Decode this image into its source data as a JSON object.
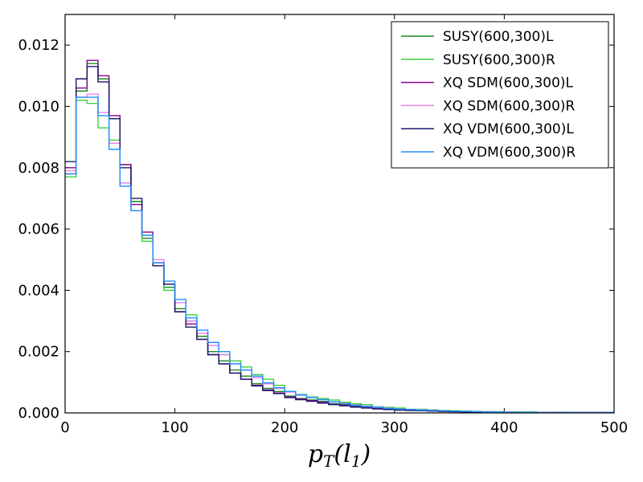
{
  "chart_data": {
    "type": "line",
    "title": "",
    "xlabel": "p_T(l_1)",
    "xlabel_parts": {
      "main": "p",
      "sub1": "T",
      "open": "(l",
      "sub2": "1",
      "close": ")"
    },
    "ylabel": "",
    "xlim": [
      0,
      500
    ],
    "ylim": [
      0,
      0.013
    ],
    "xticks": [
      0,
      100,
      200,
      300,
      400,
      500
    ],
    "yticks": [
      0.0,
      0.002,
      0.004,
      0.006,
      0.008,
      0.01,
      0.012
    ],
    "xtick_labels": [
      "0",
      "100",
      "200",
      "300",
      "400",
      "500"
    ],
    "ytick_labels": [
      "0.000",
      "0.002",
      "0.004",
      "0.006",
      "0.008",
      "0.010",
      "0.012"
    ],
    "legend_position": "top-right",
    "bin_edges": [
      0,
      10,
      20,
      30,
      40,
      50,
      60,
      70,
      80,
      90,
      100,
      110,
      120,
      130,
      140,
      150,
      160,
      170,
      180,
      190,
      200,
      210,
      220,
      230,
      240,
      250,
      260,
      270,
      280,
      290,
      300,
      310,
      320,
      330,
      340,
      350,
      360,
      370,
      380,
      390,
      400,
      410,
      420,
      430,
      440,
      450,
      460,
      470,
      480,
      490,
      500
    ],
    "series": [
      {
        "name": "SUSY(600,300)L",
        "color": "#1a8a1a",
        "values": [
          0.0078,
          0.0105,
          0.0114,
          0.0109,
          0.0096,
          0.0081,
          0.0069,
          0.0057,
          0.0048,
          0.0041,
          0.0034,
          0.003,
          0.0025,
          0.002,
          0.0017,
          0.0014,
          0.0012,
          0.00095,
          0.0008,
          0.0007,
          0.00055,
          0.00047,
          0.00042,
          0.00037,
          0.0003,
          0.00027,
          0.00022,
          0.00019,
          0.00016,
          0.00014,
          0.00012,
          0.0001,
          9e-05,
          8e-05,
          7e-05,
          6e-05,
          5e-05,
          4e-05,
          4e-05,
          3e-05,
          3e-05,
          2e-05,
          2e-05,
          2e-05,
          1e-05,
          1e-05,
          1e-05,
          1e-05,
          1e-05,
          1e-05
        ]
      },
      {
        "name": "SUSY(600,300)R",
        "color": "#3ccf3c",
        "values": [
          0.0077,
          0.0102,
          0.0101,
          0.0093,
          0.0089,
          0.0075,
          0.0066,
          0.0056,
          0.0048,
          0.004,
          0.0033,
          0.0032,
          0.0026,
          0.0023,
          0.0019,
          0.0017,
          0.0015,
          0.00125,
          0.0011,
          0.0009,
          0.0007,
          0.0006,
          0.00052,
          0.00047,
          0.00042,
          0.00035,
          0.0003,
          0.00027,
          0.0002,
          0.00018,
          0.00016,
          0.00012,
          0.00012,
          0.0001,
          8e-05,
          7e-05,
          6e-05,
          5e-05,
          4e-05,
          4e-05,
          3e-05,
          3e-05,
          3e-05,
          2e-05,
          2e-05,
          2e-05,
          1e-05,
          1e-05,
          1e-05,
          1e-05
        ]
      },
      {
        "name": "XQ SDM(600,300)L",
        "color": "#8b008b",
        "values": [
          0.008,
          0.0106,
          0.0115,
          0.011,
          0.0097,
          0.0081,
          0.0068,
          0.0059,
          0.0049,
          0.0042,
          0.0033,
          0.0029,
          0.0024,
          0.0019,
          0.0016,
          0.0013,
          0.0011,
          0.0009,
          0.00075,
          0.00065,
          0.00052,
          0.00045,
          0.0004,
          0.00035,
          0.00028,
          0.00025,
          0.0002,
          0.00017,
          0.00014,
          0.00012,
          0.0001,
          8e-05,
          7e-05,
          6e-05,
          5e-05,
          4e-05,
          4e-05,
          3e-05,
          3e-05,
          2e-05,
          2e-05,
          2e-05,
          1e-05,
          1e-05,
          1e-05,
          1e-05,
          1e-05,
          1e-05,
          1e-05,
          1e-05
        ]
      },
      {
        "name": "XQ SDM(600,300)R",
        "color": "#ee82ee",
        "values": [
          0.0079,
          0.0103,
          0.0104,
          0.0098,
          0.0088,
          0.0075,
          0.0066,
          0.0058,
          0.005,
          0.0042,
          0.0036,
          0.003,
          0.0026,
          0.0022,
          0.0019,
          0.0016,
          0.0014,
          0.00115,
          0.00095,
          0.0008,
          0.00068,
          0.00058,
          0.0005,
          0.00043,
          0.00036,
          0.00031,
          0.00026,
          0.00022,
          0.00019,
          0.00016,
          0.00013,
          0.00011,
          0.0001,
          9e-05,
          7e-05,
          6e-05,
          5e-05,
          4e-05,
          4e-05,
          3e-05,
          3e-05,
          2e-05,
          2e-05,
          2e-05,
          1e-05,
          1e-05,
          1e-05,
          1e-05,
          1e-05,
          1e-05
        ]
      },
      {
        "name": "XQ VDM(600,300)L",
        "color": "#191970",
        "values": [
          0.0082,
          0.0109,
          0.0113,
          0.0108,
          0.0096,
          0.008,
          0.007,
          0.0058,
          0.0048,
          0.0042,
          0.0033,
          0.0028,
          0.0024,
          0.0019,
          0.0016,
          0.0013,
          0.0011,
          0.00088,
          0.00073,
          0.00063,
          0.0005,
          0.00043,
          0.00038,
          0.00032,
          0.00027,
          0.00023,
          0.00019,
          0.00016,
          0.00013,
          0.00011,
          9e-05,
          8e-05,
          7e-05,
          6e-05,
          5e-05,
          4e-05,
          3e-05,
          3e-05,
          2e-05,
          2e-05,
          2e-05,
          1e-05,
          1e-05,
          1e-05,
          1e-05,
          1e-05,
          1e-05,
          1e-05,
          1e-05,
          1e-05
        ]
      },
      {
        "name": "XQ VDM(600,300)R",
        "color": "#1e90ff",
        "values": [
          0.0078,
          0.0103,
          0.0103,
          0.0097,
          0.0086,
          0.0074,
          0.0066,
          0.0058,
          0.0049,
          0.0043,
          0.0037,
          0.0031,
          0.0027,
          0.0023,
          0.002,
          0.0016,
          0.0014,
          0.0012,
          0.00098,
          0.00082,
          0.0007,
          0.00059,
          0.0005,
          0.00043,
          0.00036,
          0.0003,
          0.00025,
          0.00021,
          0.00018,
          0.00015,
          0.00013,
          0.00011,
          9e-05,
          8e-05,
          7e-05,
          6e-05,
          5e-05,
          4e-05,
          3e-05,
          3e-05,
          2e-05,
          2e-05,
          2e-05,
          1e-05,
          1e-05,
          1e-05,
          1e-05,
          1e-05,
          1e-05,
          1e-05
        ]
      }
    ]
  }
}
